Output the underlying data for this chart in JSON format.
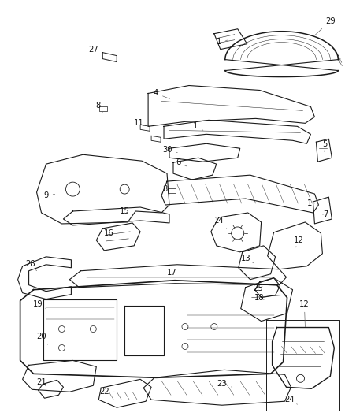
{
  "background_color": "#ffffff",
  "line_color": "#1a1a1a",
  "label_color": "#111111",
  "figsize": [
    4.38,
    5.33
  ],
  "dpi": 100
}
